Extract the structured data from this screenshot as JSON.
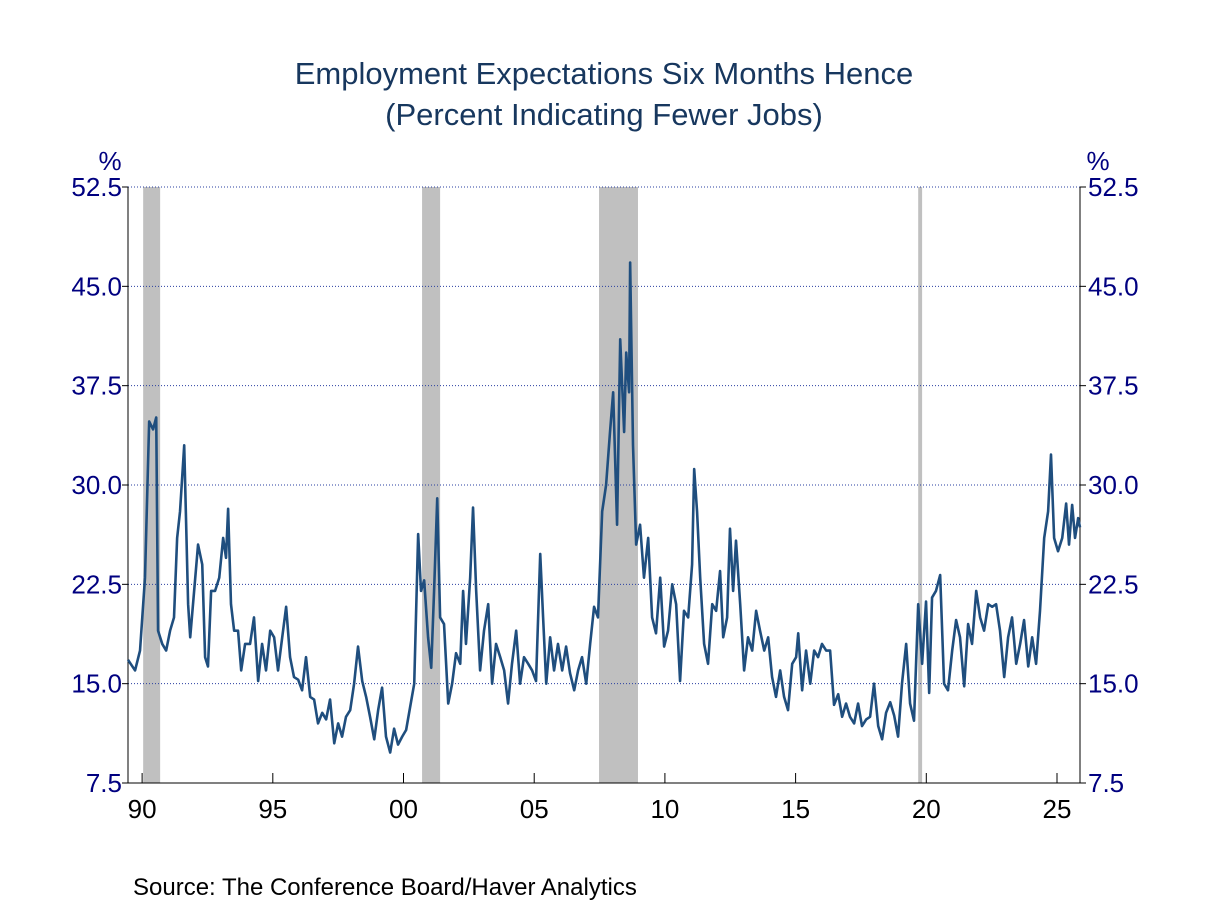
{
  "chart_data": {
    "type": "line",
    "title": [
      "Employment Expectations Six Months Hence",
      "(Percent Indicating Fewer Jobs)"
    ],
    "y_axis_label": "%",
    "source": "Source:  The Conference Board/Haver Analytics",
    "color": "#1f4e7e",
    "shade_color": "#c0c0c0",
    "grid": true,
    "xlim": [
      1989.46,
      2025.88
    ],
    "ylim": [
      7.5,
      52.5
    ],
    "xticks": [
      {
        "value": 1990,
        "label": "90"
      },
      {
        "value": 1995,
        "label": "95"
      },
      {
        "value": 2000,
        "label": "00"
      },
      {
        "value": 2005,
        "label": "05"
      },
      {
        "value": 2010,
        "label": "10"
      },
      {
        "value": 2015,
        "label": "15"
      },
      {
        "value": 2020,
        "label": "20"
      },
      {
        "value": 2025,
        "label": "25"
      }
    ],
    "yticks": [
      52.5,
      {
        "value": 45,
        "label": "45.0"
      },
      37.5,
      {
        "value": 30,
        "label": "30.0"
      },
      22.5,
      {
        "value": 15,
        "label": "15.0"
      },
      7.5
    ],
    "shaded_periods": [
      {
        "start": 1990.04,
        "end": 1990.69
      },
      {
        "start": 2000.71,
        "end": 2001.4
      },
      {
        "start": 2007.48,
        "end": 2008.97
      },
      {
        "start": 2019.69,
        "end": 2019.84
      }
    ],
    "x": [
      1989.46,
      1989.73,
      1989.92,
      1990.11,
      1990.27,
      1990.42,
      1990.54,
      1990.61,
      1990.77,
      1990.92,
      1991.07,
      1991.22,
      1991.34,
      1991.45,
      1991.61,
      1991.76,
      1991.84,
      1991.99,
      1992.14,
      1992.3,
      1992.41,
      1992.52,
      1992.64,
      1992.79,
      1992.95,
      1993.1,
      1993.21,
      1993.29,
      1993.4,
      1993.52,
      1993.67,
      1993.79,
      1993.94,
      1994.13,
      1994.28,
      1994.44,
      1994.59,
      1994.74,
      1994.9,
      1995.05,
      1995.2,
      1995.36,
      1995.51,
      1995.66,
      1995.81,
      1995.97,
      1996.12,
      1996.27,
      1996.43,
      1996.58,
      1996.73,
      1996.89,
      1997.04,
      1997.19,
      1997.35,
      1997.5,
      1997.65,
      1997.8,
      1997.96,
      1998.11,
      1998.26,
      1998.42,
      1998.57,
      1998.72,
      1998.88,
      1999.03,
      1999.18,
      1999.33,
      1999.49,
      1999.64,
      1999.79,
      1999.95,
      2000.1,
      2000.25,
      2000.41,
      2000.56,
      2000.67,
      2000.79,
      2000.94,
      2001.06,
      2001.17,
      2001.29,
      2001.4,
      2001.55,
      2001.71,
      2001.86,
      2002.01,
      2002.17,
      2002.28,
      2002.39,
      2002.55,
      2002.66,
      2002.78,
      2002.93,
      2003.08,
      2003.24,
      2003.39,
      2003.54,
      2003.7,
      2003.85,
      2004.0,
      2004.15,
      2004.31,
      2004.46,
      2004.61,
      2004.77,
      2004.92,
      2005.07,
      2005.23,
      2005.34,
      2005.46,
      2005.61,
      2005.76,
      2005.91,
      2006.07,
      2006.22,
      2006.37,
      2006.53,
      2006.68,
      2006.83,
      2006.99,
      2007.14,
      2007.29,
      2007.44,
      2007.6,
      2007.75,
      2007.9,
      2008.02,
      2008.17,
      2008.29,
      2008.44,
      2008.52,
      2008.63,
      2008.67,
      2008.78,
      2008.9,
      2009.05,
      2009.2,
      2009.36,
      2009.51,
      2009.66,
      2009.82,
      2009.97,
      2010.12,
      2010.28,
      2010.43,
      2010.58,
      2010.73,
      2010.89,
      2011.04,
      2011.12,
      2011.23,
      2011.35,
      2011.5,
      2011.65,
      2011.81,
      2011.96,
      2012.11,
      2012.23,
      2012.38,
      2012.49,
      2012.61,
      2012.72,
      2012.88,
      2013.03,
      2013.18,
      2013.34,
      2013.49,
      2013.64,
      2013.8,
      2013.95,
      2014.1,
      2014.25,
      2014.41,
      2014.56,
      2014.71,
      2014.87,
      2015.02,
      2015.1,
      2015.25,
      2015.4,
      2015.56,
      2015.71,
      2015.86,
      2016.01,
      2016.17,
      2016.32,
      2016.47,
      2016.63,
      2016.78,
      2016.93,
      2017.08,
      2017.24,
      2017.39,
      2017.54,
      2017.7,
      2017.85,
      2018.0,
      2018.16,
      2018.31,
      2018.46,
      2018.62,
      2018.77,
      2018.92,
      2019.07,
      2019.23,
      2019.38,
      2019.53,
      2019.69,
      2019.84,
      2019.99,
      2020.11,
      2020.22,
      2020.37,
      2020.53,
      2020.68,
      2020.83,
      2020.99,
      2021.14,
      2021.29,
      2021.45,
      2021.6,
      2021.75,
      2021.91,
      2022.06,
      2022.21,
      2022.37,
      2022.52,
      2022.67,
      2022.82,
      2022.98,
      2023.13,
      2023.28,
      2023.44,
      2023.59,
      2023.74,
      2023.9,
      2024.05,
      2024.2,
      2024.35,
      2024.51,
      2024.66,
      2024.77,
      2024.89,
      2025.04,
      2025.2,
      2025.35,
      2025.46,
      2025.58,
      2025.69,
      2025.81,
      2025.88
    ],
    "values": [
      16.8,
      16.0,
      17.5,
      23,
      34.8,
      34.2,
      35.1,
      19,
      18,
      17.5,
      19,
      20,
      26,
      28,
      33,
      21,
      18.5,
      22,
      25.5,
      24,
      17,
      16.3,
      22,
      22,
      23,
      26,
      24.5,
      28.2,
      21,
      19,
      19,
      16,
      18,
      18,
      20,
      15.2,
      18,
      16,
      19,
      18.5,
      16,
      18.5,
      20.8,
      17,
      15.5,
      15.3,
      14.5,
      17,
      14,
      13.8,
      12,
      12.8,
      12.3,
      13.8,
      10.5,
      12,
      11,
      12.5,
      13,
      15,
      17.8,
      15.2,
      14,
      12.5,
      10.8,
      13,
      14.7,
      11,
      9.8,
      11.6,
      10.4,
      11,
      11.5,
      13.2,
      15,
      26.3,
      22,
      22.8,
      18.5,
      16.2,
      22,
      29,
      20,
      19.5,
      13.5,
      15,
      17.3,
      16.5,
      22,
      18,
      23,
      28.3,
      22,
      16,
      19,
      21,
      15,
      18,
      17,
      16,
      13.5,
      16.5,
      19,
      15,
      17,
      16.5,
      16,
      15.2,
      24.8,
      20,
      15,
      18.5,
      16,
      18,
      16,
      17.8,
      15.8,
      14.5,
      16,
      17,
      15,
      18,
      20.8,
      20,
      28,
      30,
      34,
      37,
      27,
      41,
      34,
      40,
      37,
      46.8,
      33,
      25.5,
      27,
      23,
      26,
      20,
      18.8,
      23,
      17.8,
      19,
      22.5,
      21,
      15.2,
      20.5,
      20,
      24,
      31.2,
      28,
      23,
      18,
      16.5,
      21,
      20.5,
      23.5,
      18.5,
      20,
      26.7,
      22,
      25.8,
      21,
      16,
      18.5,
      17.5,
      20.5,
      19,
      17.5,
      18.5,
      15.5,
      14,
      16,
      14,
      13,
      16.5,
      17,
      18.8,
      14.5,
      17.5,
      15,
      17.5,
      17,
      18,
      17.5,
      17.5,
      13.4,
      14.2,
      12.5,
      13.5,
      12.5,
      12,
      13.5,
      11.8,
      12.3,
      12.5,
      15,
      11.8,
      10.8,
      12.8,
      13.6,
      12.6,
      11,
      15,
      18,
      13.5,
      12.2,
      21,
      16.5,
      21.2,
      14.3,
      21.5,
      22,
      23.2,
      15,
      14.5,
      17.5,
      19.8,
      18.5,
      14.8,
      19.5,
      18,
      22,
      20,
      19,
      21,
      20.8,
      21,
      19,
      15.5,
      18.5,
      20,
      16.5,
      18,
      19.8,
      16.3,
      18.5,
      16.5,
      20.5,
      26,
      28,
      32.3,
      26,
      25,
      26,
      28.6,
      25.5,
      28.5,
      26,
      27.5,
      26.8
    ]
  }
}
